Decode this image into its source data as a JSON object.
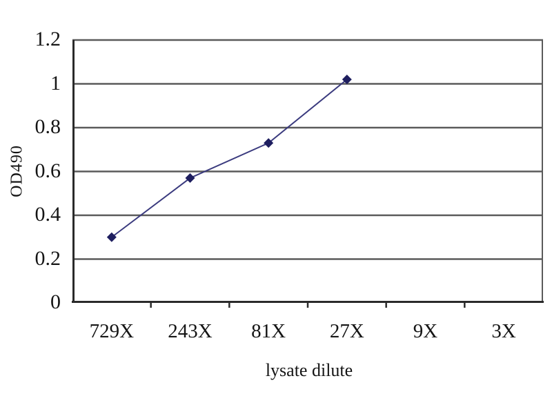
{
  "chart_data": {
    "type": "line",
    "title": "",
    "xlabel": "lysate dilute",
    "ylabel": "OD490",
    "categories": [
      "729X",
      "243X",
      "81X",
      "27X",
      "9X",
      "3X"
    ],
    "series": [
      {
        "x": [
          "729X",
          "243X",
          "81X",
          "27X"
        ],
        "values": [
          0.3,
          0.57,
          0.73,
          1.02
        ]
      }
    ],
    "ylim": [
      0,
      1.2
    ],
    "yticks": [
      1.2,
      1,
      0.8,
      0.6,
      0.4,
      0.2,
      0
    ],
    "ytick_labels": [
      "1.2",
      "1",
      "0.8",
      "0.6",
      "0.4",
      "0.2",
      "0"
    ],
    "grid": "horizontal",
    "legend": "none",
    "marker": "diamond",
    "colors": {
      "line": "#3a3a7e",
      "marker": "#1e1e5f",
      "gridline": "#5a5a5a",
      "axis": "#2a2a2a",
      "text": "#151515",
      "background": "#ffffff"
    }
  }
}
